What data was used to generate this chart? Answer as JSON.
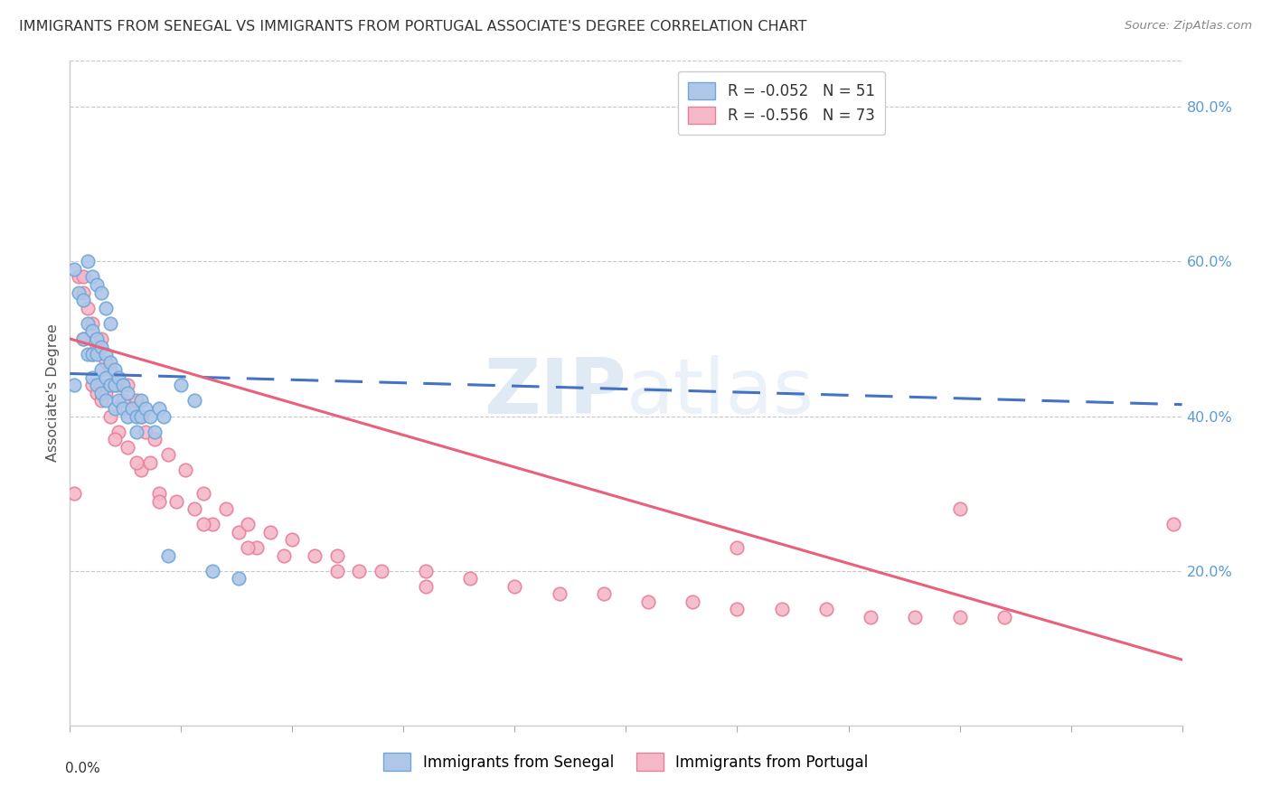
{
  "title": "IMMIGRANTS FROM SENEGAL VS IMMIGRANTS FROM PORTUGAL ASSOCIATE'S DEGREE CORRELATION CHART",
  "source": "Source: ZipAtlas.com",
  "ylabel": "Associate's Degree",
  "right_yticks": [
    0.2,
    0.4,
    0.6,
    0.8
  ],
  "right_ytick_labels": [
    "20.0%",
    "40.0%",
    "60.0%",
    "80.0%"
  ],
  "senegal_color": "#aec6e8",
  "portugal_color": "#f5b8c8",
  "senegal_edge": "#6fa8d8",
  "portugal_edge": "#e8809a",
  "trend_senegal_color": "#4472c4",
  "trend_portugal_color": "#e8607a",
  "xmin": 0.0,
  "xmax": 0.25,
  "ymin": 0.0,
  "ymax": 0.86,
  "watermark_zip": "ZIP",
  "watermark_atlas": "atlas",
  "background_color": "#ffffff",
  "grid_color": "#c8c8c8",
  "senegal_x": [
    0.001,
    0.001,
    0.002,
    0.003,
    0.003,
    0.004,
    0.004,
    0.005,
    0.005,
    0.005,
    0.006,
    0.006,
    0.006,
    0.007,
    0.007,
    0.007,
    0.008,
    0.008,
    0.008,
    0.009,
    0.009,
    0.01,
    0.01,
    0.01,
    0.011,
    0.011,
    0.012,
    0.012,
    0.013,
    0.013,
    0.014,
    0.015,
    0.015,
    0.016,
    0.016,
    0.017,
    0.018,
    0.019,
    0.02,
    0.021,
    0.022,
    0.025,
    0.028,
    0.032,
    0.038,
    0.004,
    0.005,
    0.006,
    0.007,
    0.008,
    0.009
  ],
  "senegal_y": [
    0.59,
    0.44,
    0.56,
    0.55,
    0.5,
    0.52,
    0.48,
    0.51,
    0.48,
    0.45,
    0.5,
    0.48,
    0.44,
    0.49,
    0.46,
    0.43,
    0.48,
    0.45,
    0.42,
    0.47,
    0.44,
    0.46,
    0.44,
    0.41,
    0.45,
    0.42,
    0.44,
    0.41,
    0.43,
    0.4,
    0.41,
    0.4,
    0.38,
    0.42,
    0.4,
    0.41,
    0.4,
    0.38,
    0.41,
    0.4,
    0.22,
    0.44,
    0.42,
    0.2,
    0.19,
    0.6,
    0.58,
    0.57,
    0.56,
    0.54,
    0.52
  ],
  "portugal_x": [
    0.001,
    0.002,
    0.003,
    0.003,
    0.004,
    0.005,
    0.005,
    0.006,
    0.006,
    0.007,
    0.007,
    0.008,
    0.008,
    0.009,
    0.009,
    0.01,
    0.011,
    0.011,
    0.012,
    0.013,
    0.013,
    0.014,
    0.015,
    0.016,
    0.016,
    0.017,
    0.018,
    0.019,
    0.02,
    0.022,
    0.024,
    0.026,
    0.028,
    0.03,
    0.032,
    0.035,
    0.038,
    0.04,
    0.042,
    0.045,
    0.048,
    0.05,
    0.055,
    0.06,
    0.065,
    0.07,
    0.08,
    0.09,
    0.1,
    0.11,
    0.12,
    0.13,
    0.14,
    0.15,
    0.16,
    0.17,
    0.18,
    0.19,
    0.2,
    0.21,
    0.003,
    0.005,
    0.007,
    0.01,
    0.015,
    0.02,
    0.03,
    0.04,
    0.06,
    0.08,
    0.15,
    0.2,
    0.248
  ],
  "portugal_y": [
    0.3,
    0.58,
    0.56,
    0.5,
    0.54,
    0.52,
    0.44,
    0.49,
    0.43,
    0.5,
    0.44,
    0.47,
    0.43,
    0.46,
    0.4,
    0.44,
    0.44,
    0.38,
    0.42,
    0.44,
    0.36,
    0.41,
    0.42,
    0.4,
    0.33,
    0.38,
    0.34,
    0.37,
    0.3,
    0.35,
    0.29,
    0.33,
    0.28,
    0.3,
    0.26,
    0.28,
    0.25,
    0.26,
    0.23,
    0.25,
    0.22,
    0.24,
    0.22,
    0.22,
    0.2,
    0.2,
    0.2,
    0.19,
    0.18,
    0.17,
    0.17,
    0.16,
    0.16,
    0.15,
    0.15,
    0.15,
    0.14,
    0.14,
    0.14,
    0.14,
    0.58,
    0.48,
    0.42,
    0.37,
    0.34,
    0.29,
    0.26,
    0.23,
    0.2,
    0.18,
    0.23,
    0.28,
    0.26
  ],
  "trend_senegal_x0": 0.0,
  "trend_senegal_x1": 0.25,
  "trend_senegal_y0": 0.455,
  "trend_senegal_y1": 0.415,
  "trend_portugal_x0": 0.0,
  "trend_portugal_x1": 0.25,
  "trend_portugal_y0": 0.5,
  "trend_portugal_y1": 0.085
}
